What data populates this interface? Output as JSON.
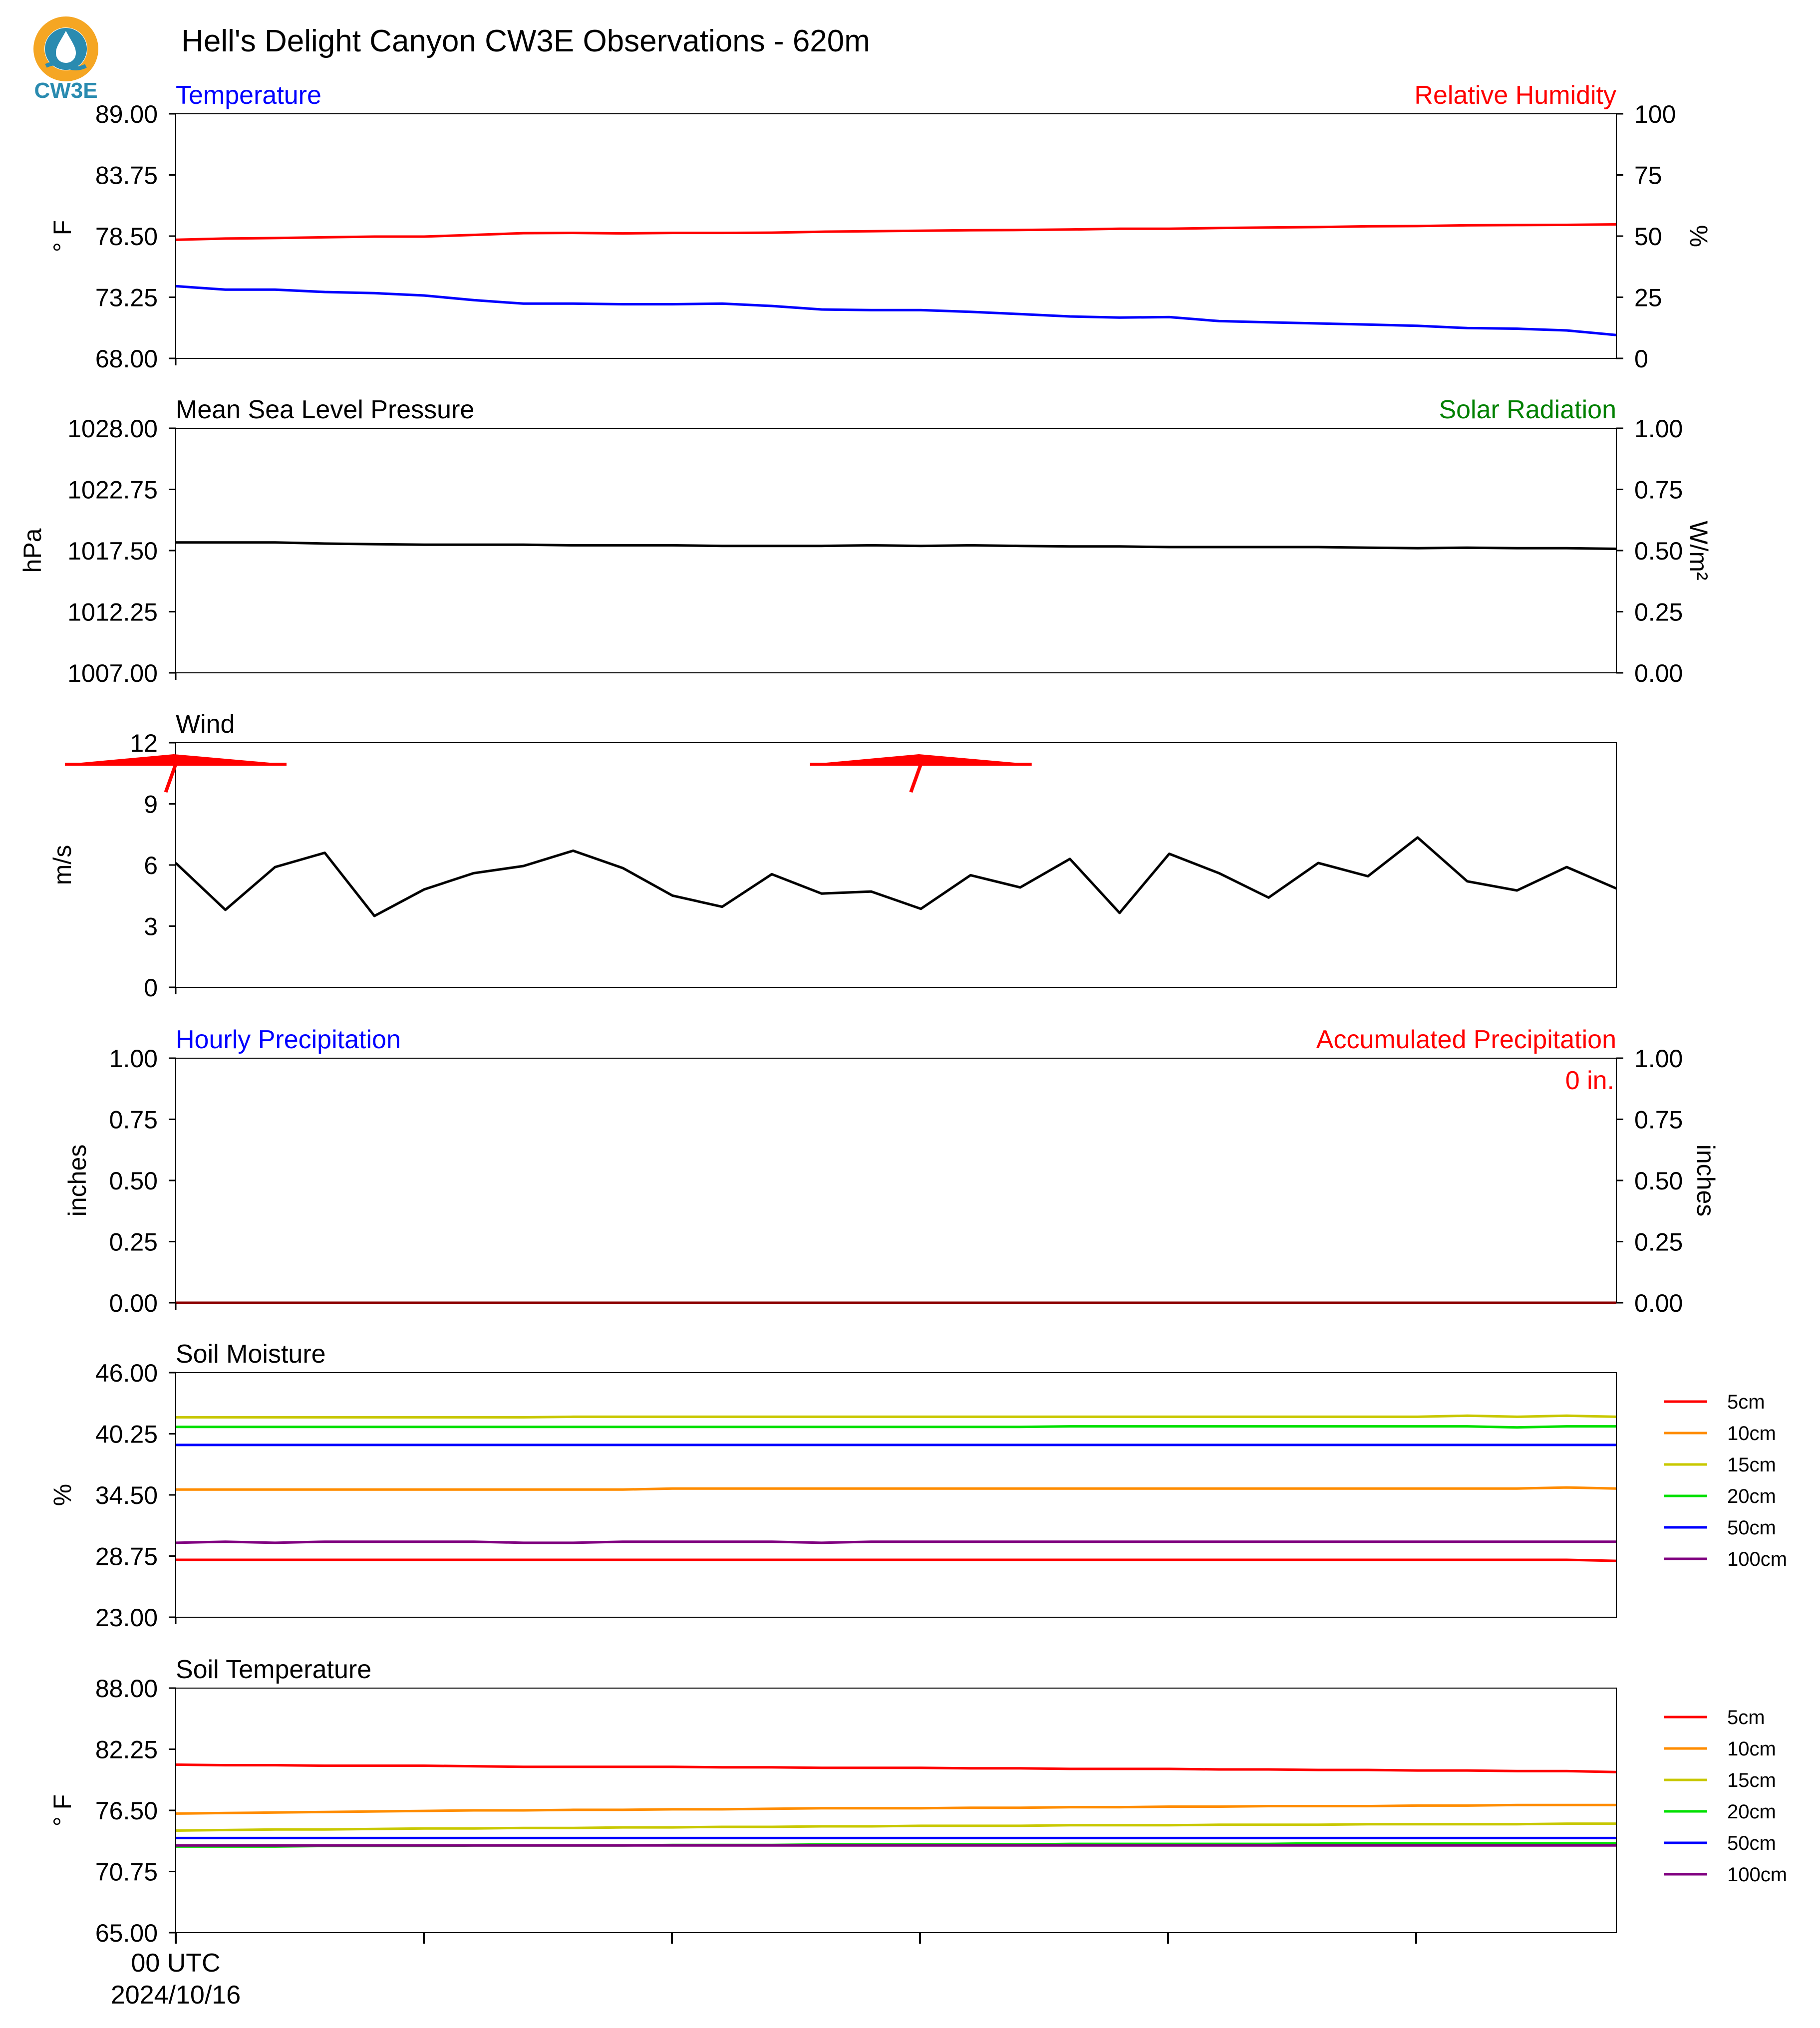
{
  "title": "Hell's Delight Canyon CW3E Observations - 620m",
  "logo": {
    "text": "CW3E",
    "color": "#2a8bb0",
    "accent": "#f5a623",
    "icon": "water-drop-logo-icon"
  },
  "x_axis": {
    "first_tick_label": "00 UTC",
    "date_label": "2024/10/16"
  },
  "chart_data": [
    {
      "type": "line",
      "left_title": "Temperature",
      "left_title_color": "#0000ff",
      "right_title": "Relative Humidity",
      "right_title_color": "#ff0000",
      "ylabel": "° F",
      "ylabel_right": "%",
      "ylim": [
        68,
        89
      ],
      "ylim_right": [
        0,
        100
      ],
      "yticks": [
        "89.00",
        "83.75",
        "78.50",
        "73.25",
        "68.00"
      ],
      "yticks_right": [
        "100",
        "75",
        "50",
        "25",
        "0"
      ],
      "series": [
        {
          "axis": "left",
          "color": "#0000ff",
          "values": [
            74.2,
            73.9,
            73.9,
            73.7,
            73.6,
            73.4,
            73.0,
            72.7,
            72.7,
            72.65,
            72.65,
            72.7,
            72.5,
            72.2,
            72.15,
            72.15,
            72.0,
            71.8,
            71.6,
            71.5,
            71.55,
            71.2,
            71.1,
            71.0,
            70.9,
            70.8,
            70.6,
            70.55,
            70.4,
            70.0
          ]
        },
        {
          "axis": "right",
          "color": "#ff0000",
          "values": [
            48.5,
            49.0,
            49.2,
            49.5,
            49.8,
            49.8,
            50.5,
            51.2,
            51.3,
            51.1,
            51.3,
            51.3,
            51.4,
            51.8,
            52.0,
            52.2,
            52.4,
            52.5,
            52.7,
            53.0,
            53.0,
            53.3,
            53.5,
            53.7,
            54.0,
            54.1,
            54.4,
            54.5,
            54.6,
            54.8
          ]
        }
      ]
    },
    {
      "type": "line",
      "left_title": "Mean Sea Level Pressure",
      "left_title_color": "#000000",
      "right_title": "Solar Radiation",
      "right_title_color": "#008000",
      "ylabel": "hPa",
      "ylabel_right": "W/m²",
      "ylim": [
        1007,
        1028
      ],
      "ylim_right": [
        0,
        1
      ],
      "yticks": [
        "1028.00",
        "1022.75",
        "1017.50",
        "1012.25",
        "1007.00"
      ],
      "yticks_right": [
        "1.00",
        "0.75",
        "0.50",
        "0.25",
        "0.00"
      ],
      "series": [
        {
          "axis": "left",
          "color": "#000000",
          "values": [
            1018.2,
            1018.2,
            1018.2,
            1018.1,
            1018.05,
            1018.0,
            1018.0,
            1018.0,
            1017.95,
            1017.95,
            1017.95,
            1017.9,
            1017.9,
            1017.9,
            1017.95,
            1017.9,
            1017.95,
            1017.9,
            1017.85,
            1017.85,
            1017.8,
            1017.8,
            1017.8,
            1017.8,
            1017.75,
            1017.7,
            1017.75,
            1017.7,
            1017.7,
            1017.65
          ]
        }
      ]
    },
    {
      "type": "line",
      "left_title": "Wind",
      "left_title_color": "#000000",
      "ylabel": "m/s",
      "ylim": [
        0,
        12
      ],
      "yticks": [
        "12",
        "9",
        "6",
        "3",
        "0"
      ],
      "series": [
        {
          "axis": "left",
          "color": "#000000",
          "values": [
            6.1,
            3.8,
            5.9,
            6.6,
            3.5,
            4.8,
            5.6,
            5.95,
            6.7,
            5.85,
            4.5,
            3.95,
            5.55,
            4.6,
            4.7,
            3.85,
            5.5,
            4.9,
            6.3,
            3.65,
            6.55,
            5.6,
            4.4,
            6.1,
            5.45,
            7.35,
            5.2,
            4.75,
            5.9,
            4.85
          ]
        }
      ],
      "barbs": [
        {
          "hour_index": 0
        },
        {
          "hour_index": 15
        }
      ],
      "barb_color": "#ff0000"
    },
    {
      "type": "line",
      "left_title": "Hourly Precipitation",
      "left_title_color": "#0000ff",
      "right_title": "Accumulated Precipitation",
      "right_title_color": "#ff0000",
      "ylabel": "inches",
      "ylabel_right": "inches",
      "ylim": [
        0,
        1
      ],
      "ylim_right": [
        0,
        1
      ],
      "yticks": [
        "1.00",
        "0.75",
        "0.50",
        "0.25",
        "0.00"
      ],
      "yticks_right": [
        "1.00",
        "0.75",
        "0.50",
        "0.25",
        "0.00"
      ],
      "annotation": "0 in.",
      "series": [
        {
          "axis": "left",
          "color": "#8b0000",
          "values": [
            0,
            0,
            0,
            0,
            0,
            0,
            0,
            0,
            0,
            0,
            0,
            0,
            0,
            0,
            0,
            0,
            0,
            0,
            0,
            0,
            0,
            0,
            0,
            0,
            0,
            0,
            0,
            0,
            0,
            0
          ]
        }
      ]
    },
    {
      "type": "line",
      "left_title": "Soil Moisture",
      "left_title_color": "#000000",
      "ylabel": "%",
      "ylim": [
        23,
        46
      ],
      "yticks": [
        "46.00",
        "40.25",
        "34.50",
        "28.75",
        "23.00"
      ],
      "legend": "right",
      "series": [
        {
          "name": "5cm",
          "color": "#ff0000",
          "values": [
            28.4,
            28.4,
            28.4,
            28.4,
            28.4,
            28.4,
            28.4,
            28.4,
            28.4,
            28.4,
            28.4,
            28.4,
            28.4,
            28.4,
            28.4,
            28.4,
            28.4,
            28.4,
            28.4,
            28.4,
            28.4,
            28.4,
            28.4,
            28.4,
            28.4,
            28.4,
            28.4,
            28.4,
            28.4,
            28.3
          ]
        },
        {
          "name": "10cm",
          "color": "#ff8c00",
          "values": [
            35.0,
            35.0,
            35.0,
            35.0,
            35.0,
            35.0,
            35.0,
            35.0,
            35.0,
            35.0,
            35.1,
            35.1,
            35.1,
            35.1,
            35.1,
            35.1,
            35.1,
            35.1,
            35.1,
            35.1,
            35.1,
            35.1,
            35.1,
            35.1,
            35.1,
            35.1,
            35.1,
            35.1,
            35.2,
            35.1
          ]
        },
        {
          "name": "15cm",
          "color": "#c8c800",
          "values": [
            41.8,
            41.8,
            41.8,
            41.8,
            41.8,
            41.8,
            41.8,
            41.8,
            41.85,
            41.85,
            41.85,
            41.85,
            41.85,
            41.85,
            41.85,
            41.85,
            41.85,
            41.85,
            41.85,
            41.85,
            41.85,
            41.85,
            41.85,
            41.85,
            41.85,
            41.85,
            41.95,
            41.85,
            41.95,
            41.85
          ]
        },
        {
          "name": "20cm",
          "color": "#00e000",
          "values": [
            40.9,
            40.9,
            40.9,
            40.9,
            40.9,
            40.9,
            40.9,
            40.9,
            40.9,
            40.9,
            40.9,
            40.9,
            40.9,
            40.9,
            40.9,
            40.9,
            40.9,
            40.9,
            40.95,
            40.95,
            40.95,
            40.95,
            40.95,
            40.95,
            40.95,
            40.95,
            40.95,
            40.85,
            40.95,
            40.95
          ]
        },
        {
          "name": "50cm",
          "color": "#0000ff",
          "values": [
            39.2,
            39.2,
            39.2,
            39.2,
            39.2,
            39.2,
            39.2,
            39.2,
            39.2,
            39.2,
            39.2,
            39.2,
            39.2,
            39.2,
            39.2,
            39.2,
            39.2,
            39.2,
            39.2,
            39.2,
            39.2,
            39.2,
            39.2,
            39.2,
            39.2,
            39.2,
            39.2,
            39.2,
            39.2,
            39.2
          ]
        },
        {
          "name": "100cm",
          "color": "#800080",
          "values": [
            30.0,
            30.1,
            30.0,
            30.1,
            30.1,
            30.1,
            30.1,
            30.0,
            30.0,
            30.1,
            30.1,
            30.1,
            30.1,
            30.0,
            30.1,
            30.1,
            30.1,
            30.1,
            30.1,
            30.1,
            30.1,
            30.1,
            30.1,
            30.1,
            30.1,
            30.1,
            30.1,
            30.1,
            30.1,
            30.1
          ]
        }
      ]
    },
    {
      "type": "line",
      "left_title": "Soil Temperature",
      "left_title_color": "#000000",
      "ylabel": "° F",
      "ylim": [
        65,
        88
      ],
      "yticks": [
        "88.00",
        "82.25",
        "76.50",
        "70.75",
        "65.00"
      ],
      "legend": "right",
      "series": [
        {
          "name": "5cm",
          "color": "#ff0000",
          "values": [
            80.8,
            80.75,
            80.75,
            80.7,
            80.7,
            80.7,
            80.65,
            80.6,
            80.6,
            80.6,
            80.6,
            80.55,
            80.55,
            80.5,
            80.5,
            80.5,
            80.45,
            80.45,
            80.4,
            80.4,
            80.4,
            80.35,
            80.35,
            80.3,
            80.3,
            80.25,
            80.25,
            80.2,
            80.2,
            80.1
          ]
        },
        {
          "name": "10cm",
          "color": "#ff8c00",
          "values": [
            76.2,
            76.25,
            76.3,
            76.35,
            76.4,
            76.45,
            76.5,
            76.5,
            76.55,
            76.55,
            76.6,
            76.6,
            76.65,
            76.7,
            76.7,
            76.7,
            76.75,
            76.75,
            76.8,
            76.8,
            76.85,
            76.85,
            76.9,
            76.9,
            76.9,
            76.95,
            76.95,
            77.0,
            77.0,
            77.0
          ]
        },
        {
          "name": "15cm",
          "color": "#c8c800",
          "values": [
            74.6,
            74.65,
            74.7,
            74.7,
            74.75,
            74.8,
            74.8,
            74.85,
            74.85,
            74.9,
            74.9,
            74.95,
            74.95,
            75.0,
            75.0,
            75.05,
            75.05,
            75.05,
            75.1,
            75.1,
            75.1,
            75.15,
            75.15,
            75.15,
            75.2,
            75.2,
            75.2,
            75.2,
            75.25,
            75.25
          ]
        },
        {
          "name": "20cm",
          "color": "#00e000",
          "values": [
            73.1,
            73.1,
            73.1,
            73.15,
            73.15,
            73.15,
            73.2,
            73.2,
            73.2,
            73.2,
            73.25,
            73.25,
            73.25,
            73.3,
            73.3,
            73.3,
            73.3,
            73.3,
            73.35,
            73.35,
            73.35,
            73.35,
            73.35,
            73.4,
            73.4,
            73.4,
            73.4,
            73.4,
            73.4,
            73.4
          ]
        },
        {
          "name": "50cm",
          "color": "#0000ff",
          "values": [
            73.9,
            73.9,
            73.9,
            73.9,
            73.9,
            73.9,
            73.9,
            73.9,
            73.9,
            73.9,
            73.9,
            73.9,
            73.9,
            73.9,
            73.9,
            73.9,
            73.9,
            73.9,
            73.9,
            73.9,
            73.9,
            73.9,
            73.9,
            73.9,
            73.9,
            73.9,
            73.9,
            73.9,
            73.9,
            73.9
          ]
        },
        {
          "name": "100cm",
          "color": "#800080",
          "values": [
            73.2,
            73.2,
            73.2,
            73.2,
            73.2,
            73.2,
            73.2,
            73.2,
            73.2,
            73.2,
            73.2,
            73.2,
            73.2,
            73.2,
            73.2,
            73.2,
            73.2,
            73.2,
            73.2,
            73.2,
            73.2,
            73.2,
            73.2,
            73.2,
            73.2,
            73.2,
            73.2,
            73.2,
            73.2,
            73.2
          ]
        }
      ]
    }
  ]
}
